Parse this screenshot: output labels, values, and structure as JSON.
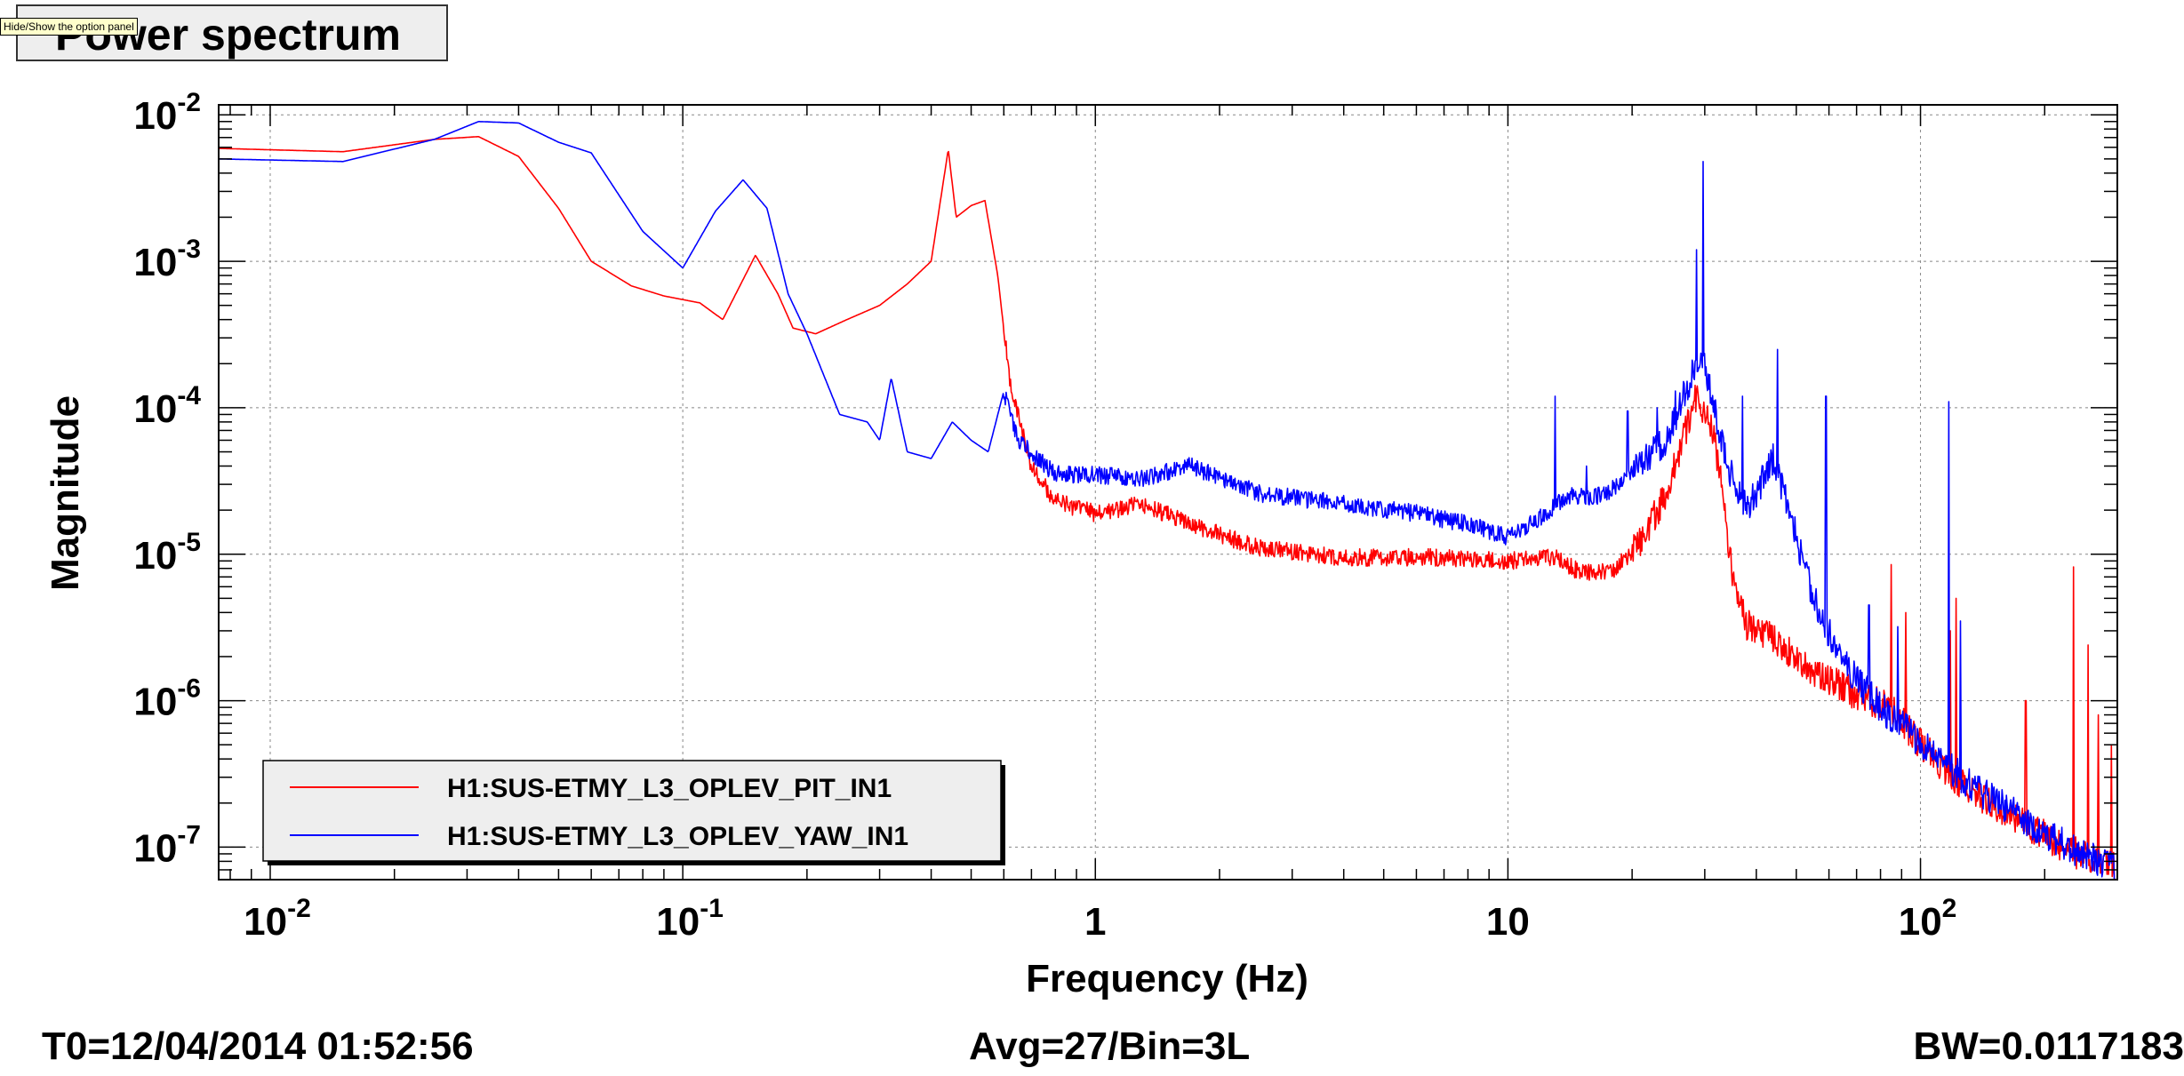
{
  "title": "Power spectrum",
  "tooltip": "Hide/Show the option panel",
  "footer": {
    "t0": "T0=12/04/2014 01:52:56",
    "avg": "Avg=27/Bin=3L",
    "bw": "BW=0.0117183"
  },
  "chart_data": {
    "type": "line",
    "title": "Power spectrum",
    "xlabel": "Frequency (Hz)",
    "ylabel": "Magnitude",
    "x_scale": "log",
    "y_scale": "log",
    "xlim": [
      0.0075,
      300
    ],
    "ylim": [
      6e-08,
      0.0117
    ],
    "grid": true,
    "legend_position": "bottom-left",
    "x_ticks": [
      {
        "value": 0.01,
        "base": "10",
        "exp": "-2"
      },
      {
        "value": 0.1,
        "base": "10",
        "exp": "-1"
      },
      {
        "value": 1,
        "base": "1",
        "exp": ""
      },
      {
        "value": 10,
        "base": "10",
        "exp": ""
      },
      {
        "value": 100,
        "base": "10",
        "exp": "2"
      }
    ],
    "y_ticks": [
      {
        "value": 0.01,
        "base": "10",
        "exp": "-2"
      },
      {
        "value": 0.001,
        "base": "10",
        "exp": "-3"
      },
      {
        "value": 0.0001,
        "base": "10",
        "exp": "-4"
      },
      {
        "value": 1e-05,
        "base": "10",
        "exp": "-5"
      },
      {
        "value": 1e-06,
        "base": "10",
        "exp": "-6"
      },
      {
        "value": 1e-07,
        "base": "10",
        "exp": "-7"
      }
    ],
    "series": [
      {
        "name": "H1:SUS-ETMY_L3_OPLEV_PIT_IN1",
        "color": "#ff0000",
        "points": [
          [
            0.0075,
            0.0059
          ],
          [
            0.015,
            0.0056
          ],
          [
            0.025,
            0.0068
          ],
          [
            0.032,
            0.0071
          ],
          [
            0.04,
            0.0052
          ],
          [
            0.05,
            0.0023
          ],
          [
            0.06,
            0.001
          ],
          [
            0.075,
            0.00068
          ],
          [
            0.09,
            0.00058
          ],
          [
            0.11,
            0.00052
          ],
          [
            0.125,
            0.0004
          ],
          [
            0.14,
            0.00075
          ],
          [
            0.15,
            0.0011
          ],
          [
            0.17,
            0.0006
          ],
          [
            0.185,
            0.00035
          ],
          [
            0.21,
            0.00032
          ],
          [
            0.25,
            0.0004
          ],
          [
            0.3,
            0.0005
          ],
          [
            0.35,
            0.0007
          ],
          [
            0.4,
            0.001
          ],
          [
            0.44,
            0.0058
          ],
          [
            0.46,
            0.002
          ],
          [
            0.5,
            0.0024
          ],
          [
            0.54,
            0.0026
          ],
          [
            0.58,
            0.0008
          ],
          [
            0.62,
            0.00015
          ],
          [
            0.7,
            4e-05
          ],
          [
            0.8,
            2.3e-05
          ],
          [
            1,
            1.9e-05
          ],
          [
            1.3,
            2.2e-05
          ],
          [
            1.7,
            1.6e-05
          ],
          [
            2.5,
            1.1e-05
          ],
          [
            4,
            9.5e-06
          ],
          [
            7,
            9.5e-06
          ],
          [
            10,
            9e-06
          ],
          [
            13,
            9.5e-06
          ],
          [
            15,
            7.5e-06
          ],
          [
            18,
            7.8e-06
          ],
          [
            21,
            1.2e-05
          ],
          [
            24,
            2.5e-05
          ],
          [
            27,
            7e-05
          ],
          [
            28.5,
            0.00012
          ],
          [
            29.5,
            9e-05
          ],
          [
            31,
            8e-05
          ],
          [
            33,
            3e-05
          ],
          [
            35,
            7e-06
          ],
          [
            38,
            3.3e-06
          ],
          [
            45,
            2.5e-06
          ],
          [
            55,
            1.6e-06
          ],
          [
            70,
            1.1e-06
          ],
          [
            85,
            9e-07
          ],
          [
            95,
            6e-07
          ],
          [
            110,
            3.8e-07
          ],
          [
            130,
            2.5e-07
          ],
          [
            160,
            1.8e-07
          ],
          [
            200,
            1.2e-07
          ],
          [
            240,
            9e-08
          ],
          [
            270,
            8.5e-08
          ],
          [
            295,
            7.5e-08
          ]
        ],
        "peaks": [
          [
            85,
            8.5e-06
          ],
          [
            92,
            4e-06
          ],
          [
            118,
            3e-06
          ],
          [
            122,
            5e-06
          ],
          [
            180,
            1e-06
          ],
          [
            235,
            8.2e-06
          ],
          [
            255,
            2.4e-06
          ],
          [
            270,
            8e-07
          ],
          [
            290,
            5e-07
          ]
        ]
      },
      {
        "name": "H1:SUS-ETMY_L3_OPLEV_YAW_IN1",
        "color": "#0000ff",
        "points": [
          [
            0.0075,
            0.005
          ],
          [
            0.015,
            0.0048
          ],
          [
            0.025,
            0.0068
          ],
          [
            0.032,
            0.009
          ],
          [
            0.04,
            0.0088
          ],
          [
            0.05,
            0.0065
          ],
          [
            0.06,
            0.0055
          ],
          [
            0.08,
            0.0016
          ],
          [
            0.1,
            0.0009
          ],
          [
            0.12,
            0.0022
          ],
          [
            0.14,
            0.0036
          ],
          [
            0.16,
            0.0023
          ],
          [
            0.18,
            0.0006
          ],
          [
            0.2,
            0.00032
          ],
          [
            0.24,
            9e-05
          ],
          [
            0.28,
            8e-05
          ],
          [
            0.3,
            6e-05
          ],
          [
            0.32,
            0.00016
          ],
          [
            0.35,
            5e-05
          ],
          [
            0.4,
            4.5e-05
          ],
          [
            0.45,
            8e-05
          ],
          [
            0.5,
            6e-05
          ],
          [
            0.55,
            5e-05
          ],
          [
            0.6,
            0.00013
          ],
          [
            0.65,
            6e-05
          ],
          [
            0.8,
            3.5e-05
          ],
          [
            1,
            3.5e-05
          ],
          [
            1.3,
            3.3e-05
          ],
          [
            1.7,
            4e-05
          ],
          [
            2.5,
            2.6e-05
          ],
          [
            4,
            2.2e-05
          ],
          [
            6,
            1.9e-05
          ],
          [
            8,
            1.6e-05
          ],
          [
            10,
            1.3e-05
          ],
          [
            12,
            1.8e-05
          ],
          [
            14,
            2.5e-05
          ],
          [
            17,
            2.5e-05
          ],
          [
            20,
            3.5e-05
          ],
          [
            24,
            6e-05
          ],
          [
            27,
            0.00013
          ],
          [
            28.5,
            0.0002
          ],
          [
            29.5,
            0.00025
          ],
          [
            31,
            0.00013
          ],
          [
            34,
            4e-05
          ],
          [
            38,
            2e-05
          ],
          [
            44,
            4.5e-05
          ],
          [
            48,
            2e-05
          ],
          [
            55,
            5e-06
          ],
          [
            65,
            1.8e-06
          ],
          [
            80,
            9e-07
          ],
          [
            95,
            6e-07
          ],
          [
            110,
            4e-07
          ],
          [
            140,
            2.4e-07
          ],
          [
            180,
            1.5e-07
          ],
          [
            230,
            1e-07
          ],
          [
            270,
            8e-08
          ],
          [
            295,
            7e-08
          ]
        ],
        "peaks": [
          [
            13,
            0.00012
          ],
          [
            15.5,
            4e-05
          ],
          [
            19.5,
            9.5e-05
          ],
          [
            23,
            0.0001
          ],
          [
            25.5,
            0.00013
          ],
          [
            28.7,
            0.0012
          ],
          [
            29.7,
            0.0048
          ],
          [
            37,
            0.00012
          ],
          [
            45,
            0.00025
          ],
          [
            59,
            0.00012
          ],
          [
            75,
            4.5e-06
          ],
          [
            88,
            3.2e-06
          ],
          [
            117,
            0.00011
          ],
          [
            125,
            3.5e-06
          ]
        ]
      }
    ]
  }
}
